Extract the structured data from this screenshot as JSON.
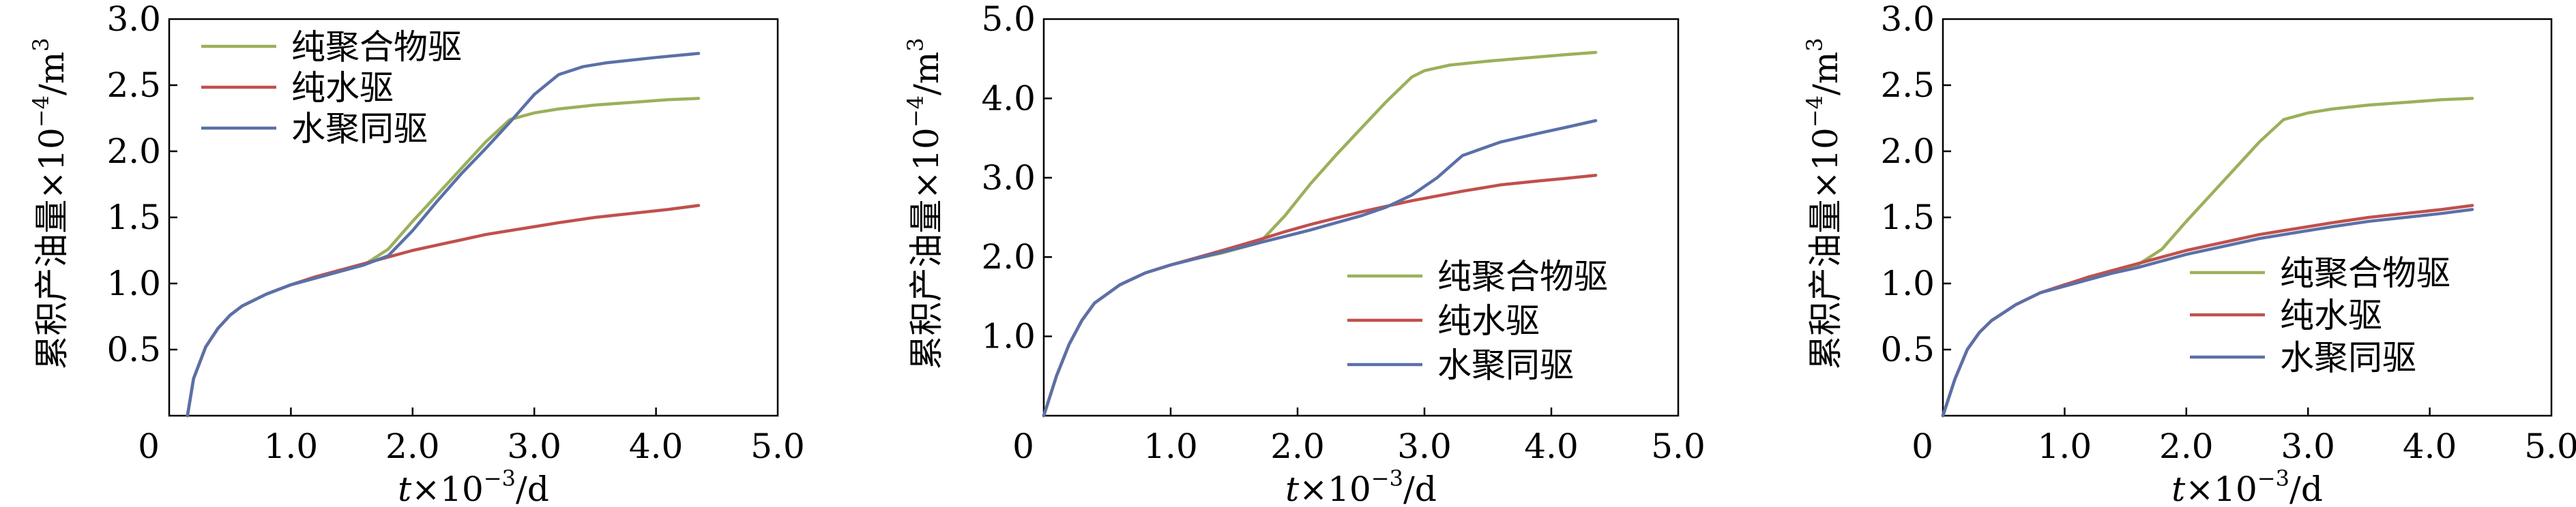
{
  "chart_data": [
    {
      "type": "line",
      "xlabel": {
        "var": "t",
        "rest": "×10",
        "exp": "−3",
        "unit": "/d"
      },
      "ylabel": {
        "rest": "累积产油量×10",
        "exp": "−4",
        "unit": "/m",
        "unit_exp": "3"
      },
      "xlim": [
        0,
        5.0
      ],
      "ylim": [
        0,
        3.0
      ],
      "xticks": [
        {
          "v": 0,
          "label": "0"
        },
        {
          "v": 1,
          "label": "1.0"
        },
        {
          "v": 2,
          "label": "2.0"
        },
        {
          "v": 3,
          "label": "3.0"
        },
        {
          "v": 4,
          "label": "4.0"
        },
        {
          "v": 5,
          "label": "5.0"
        }
      ],
      "yticks": [
        {
          "v": 0.5,
          "label": "0.5"
        },
        {
          "v": 1.0,
          "label": "1.0"
        },
        {
          "v": 1.5,
          "label": "1.5"
        },
        {
          "v": 2.0,
          "label": "2.0"
        },
        {
          "v": 2.5,
          "label": "2.5"
        },
        {
          "v": 3.0,
          "label": "3.0"
        }
      ],
      "legend_position": "top-left",
      "series": [
        {
          "name": "纯聚合物驱",
          "color": "#9BB05A",
          "x": [
            0.15,
            0.2,
            0.3,
            0.4,
            0.5,
            0.6,
            0.8,
            1.0,
            1.2,
            1.4,
            1.6,
            1.8,
            2.0,
            2.2,
            2.4,
            2.6,
            2.8,
            3.0,
            3.2,
            3.5,
            3.8,
            4.1,
            4.35
          ],
          "y": [
            0.0,
            0.28,
            0.52,
            0.66,
            0.76,
            0.83,
            0.92,
            0.99,
            1.04,
            1.09,
            1.14,
            1.26,
            1.47,
            1.67,
            1.87,
            2.07,
            2.24,
            2.29,
            2.32,
            2.35,
            2.37,
            2.39,
            2.4
          ]
        },
        {
          "name": "纯水驱",
          "color": "#C0504D",
          "x": [
            0.15,
            0.2,
            0.3,
            0.4,
            0.5,
            0.6,
            0.8,
            1.0,
            1.2,
            1.4,
            1.6,
            1.8,
            2.0,
            2.2,
            2.4,
            2.6,
            2.8,
            3.0,
            3.2,
            3.5,
            3.8,
            4.1,
            4.35
          ],
          "y": [
            0.0,
            0.28,
            0.52,
            0.66,
            0.76,
            0.83,
            0.92,
            0.99,
            1.05,
            1.1,
            1.15,
            1.2,
            1.25,
            1.29,
            1.33,
            1.37,
            1.4,
            1.43,
            1.46,
            1.5,
            1.53,
            1.56,
            1.59
          ]
        },
        {
          "name": "水聚同驱",
          "color": "#5B70A8",
          "x": [
            0.15,
            0.2,
            0.3,
            0.4,
            0.5,
            0.6,
            0.8,
            1.0,
            1.2,
            1.4,
            1.6,
            1.8,
            2.0,
            2.2,
            2.4,
            2.6,
            2.8,
            3.0,
            3.2,
            3.4,
            3.6,
            4.0,
            4.35
          ],
          "y": [
            0.0,
            0.28,
            0.52,
            0.66,
            0.76,
            0.83,
            0.92,
            0.99,
            1.04,
            1.09,
            1.14,
            1.21,
            1.4,
            1.62,
            1.83,
            2.02,
            2.22,
            2.43,
            2.58,
            2.64,
            2.67,
            2.71,
            2.74
          ]
        }
      ]
    },
    {
      "type": "line",
      "xlabel": {
        "var": "t",
        "rest": "×10",
        "exp": "−3",
        "unit": "/d"
      },
      "ylabel": {
        "rest": "累积产油量×10",
        "exp": "−4",
        "unit": "/m",
        "unit_exp": "3"
      },
      "xlim": [
        0,
        5.0
      ],
      "ylim": [
        0,
        5.0
      ],
      "xticks": [
        {
          "v": 0,
          "label": "0"
        },
        {
          "v": 1,
          "label": "1.0"
        },
        {
          "v": 2,
          "label": "2.0"
        },
        {
          "v": 3,
          "label": "3.0"
        },
        {
          "v": 4,
          "label": "4.0"
        },
        {
          "v": 5,
          "label": "5.0"
        }
      ],
      "yticks": [
        {
          "v": 1.0,
          "label": "1.0"
        },
        {
          "v": 2.0,
          "label": "2.0"
        },
        {
          "v": 3.0,
          "label": "3.0"
        },
        {
          "v": 4.0,
          "label": "4.0"
        },
        {
          "v": 5.0,
          "label": "5.0"
        }
      ],
      "legend_position": "bottom-right",
      "series": [
        {
          "name": "纯聚合物驱",
          "color": "#9BB05A",
          "x": [
            0.0,
            0.1,
            0.2,
            0.3,
            0.4,
            0.6,
            0.8,
            1.0,
            1.2,
            1.4,
            1.7,
            1.9,
            2.1,
            2.3,
            2.5,
            2.7,
            2.9,
            3.0,
            3.2,
            3.5,
            3.8,
            4.1,
            4.35
          ],
          "y": [
            0.0,
            0.5,
            0.9,
            1.2,
            1.42,
            1.65,
            1.8,
            1.9,
            1.98,
            2.05,
            2.18,
            2.52,
            2.92,
            3.28,
            3.62,
            3.96,
            4.27,
            4.35,
            4.42,
            4.47,
            4.51,
            4.55,
            4.58
          ]
        },
        {
          "name": "纯水驱",
          "color": "#C0504D",
          "x": [
            0.0,
            0.1,
            0.2,
            0.3,
            0.4,
            0.6,
            0.8,
            1.0,
            1.2,
            1.4,
            1.7,
            1.9,
            2.1,
            2.3,
            2.5,
            2.7,
            2.9,
            3.1,
            3.3,
            3.6,
            3.9,
            4.1,
            4.35
          ],
          "y": [
            0.0,
            0.5,
            0.9,
            1.2,
            1.42,
            1.65,
            1.8,
            1.9,
            1.99,
            2.08,
            2.22,
            2.32,
            2.41,
            2.49,
            2.57,
            2.64,
            2.71,
            2.77,
            2.83,
            2.91,
            2.96,
            2.99,
            3.03
          ]
        },
        {
          "name": "水聚同驱",
          "color": "#5B70A8",
          "x": [
            0.0,
            0.1,
            0.2,
            0.3,
            0.4,
            0.6,
            0.8,
            1.0,
            1.2,
            1.4,
            1.7,
            1.9,
            2.1,
            2.3,
            2.5,
            2.7,
            2.9,
            3.1,
            3.3,
            3.6,
            3.9,
            4.1,
            4.35
          ],
          "y": [
            0.0,
            0.5,
            0.9,
            1.2,
            1.42,
            1.65,
            1.8,
            1.9,
            1.98,
            2.06,
            2.18,
            2.26,
            2.34,
            2.43,
            2.52,
            2.63,
            2.78,
            3.0,
            3.28,
            3.45,
            3.56,
            3.63,
            3.72
          ]
        }
      ]
    },
    {
      "type": "line",
      "xlabel": {
        "var": "t",
        "rest": "×10",
        "exp": "−3",
        "unit": "/d"
      },
      "ylabel": {
        "rest": "累积产油量×10",
        "exp": "−4",
        "unit": "/m",
        "unit_exp": "3"
      },
      "xlim": [
        0,
        5.0
      ],
      "ylim": [
        0,
        3.0
      ],
      "xticks": [
        {
          "v": 0,
          "label": "0"
        },
        {
          "v": 1,
          "label": "1.0"
        },
        {
          "v": 2,
          "label": "2.0"
        },
        {
          "v": 3,
          "label": "3.0"
        },
        {
          "v": 4,
          "label": "4.0"
        },
        {
          "v": 5,
          "label": "5.0"
        }
      ],
      "yticks": [
        {
          "v": 0.5,
          "label": "0.5"
        },
        {
          "v": 1.0,
          "label": "1.0"
        },
        {
          "v": 1.5,
          "label": "1.5"
        },
        {
          "v": 2.0,
          "label": "2.0"
        },
        {
          "v": 2.5,
          "label": "2.5"
        },
        {
          "v": 3.0,
          "label": "3.0"
        }
      ],
      "legend_position": "bottom-right",
      "series": [
        {
          "name": "纯聚合物驱",
          "color": "#9BB05A",
          "x": [
            0.0,
            0.1,
            0.2,
            0.3,
            0.4,
            0.6,
            0.8,
            1.0,
            1.2,
            1.4,
            1.6,
            1.8,
            2.0,
            2.2,
            2.4,
            2.6,
            2.8,
            3.0,
            3.2,
            3.5,
            3.8,
            4.1,
            4.35
          ],
          "y": [
            0.0,
            0.28,
            0.5,
            0.63,
            0.72,
            0.84,
            0.93,
            0.99,
            1.04,
            1.09,
            1.14,
            1.26,
            1.47,
            1.67,
            1.87,
            2.07,
            2.24,
            2.29,
            2.32,
            2.35,
            2.37,
            2.39,
            2.4
          ]
        },
        {
          "name": "纯水驱",
          "color": "#C0504D",
          "x": [
            0.0,
            0.1,
            0.2,
            0.3,
            0.4,
            0.6,
            0.8,
            1.0,
            1.2,
            1.4,
            1.6,
            1.8,
            2.0,
            2.2,
            2.4,
            2.6,
            2.8,
            3.0,
            3.2,
            3.5,
            3.8,
            4.1,
            4.35
          ],
          "y": [
            0.0,
            0.28,
            0.5,
            0.63,
            0.72,
            0.84,
            0.93,
            0.99,
            1.05,
            1.1,
            1.15,
            1.2,
            1.25,
            1.29,
            1.33,
            1.37,
            1.4,
            1.43,
            1.46,
            1.5,
            1.53,
            1.56,
            1.59
          ]
        },
        {
          "name": "水聚同驱",
          "color": "#5B70A8",
          "x": [
            0.0,
            0.1,
            0.2,
            0.3,
            0.4,
            0.6,
            0.8,
            1.0,
            1.2,
            1.4,
            1.6,
            1.8,
            2.0,
            2.2,
            2.4,
            2.6,
            2.8,
            3.0,
            3.2,
            3.5,
            3.8,
            4.1,
            4.35
          ],
          "y": [
            0.0,
            0.28,
            0.5,
            0.63,
            0.72,
            0.84,
            0.93,
            0.98,
            1.03,
            1.08,
            1.12,
            1.17,
            1.22,
            1.26,
            1.3,
            1.34,
            1.37,
            1.4,
            1.43,
            1.47,
            1.5,
            1.53,
            1.56
          ]
        }
      ]
    }
  ]
}
